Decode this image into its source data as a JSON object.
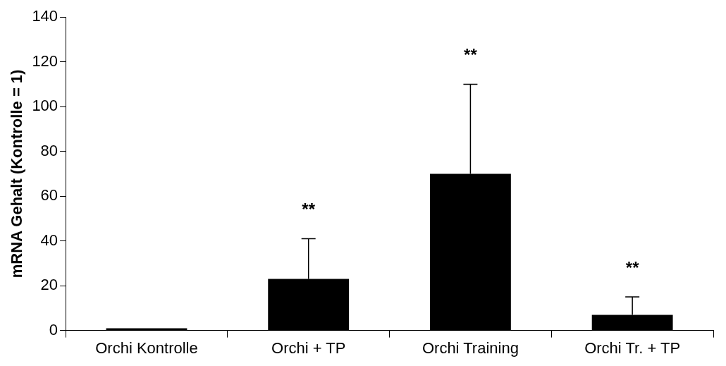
{
  "chart_data": {
    "type": "bar",
    "ylabel": "mRNA Gehalt (Kontrolle = 1)",
    "categories": [
      "Orchi Kontrolle",
      "Orchi + TP",
      "Orchi Training",
      "Orchi Tr. + TP"
    ],
    "values": [
      1,
      23,
      70,
      7
    ],
    "color": "#000000",
    "errors": [
      null,
      [
        23,
        41
      ],
      [
        70,
        110
      ],
      [
        7,
        15
      ]
    ],
    "ylim": [
      0,
      140
    ],
    "yticks": [
      0,
      20,
      40,
      60,
      80,
      100,
      120,
      140
    ],
    "annotations": [
      "**",
      "**",
      "**"
    ]
  }
}
